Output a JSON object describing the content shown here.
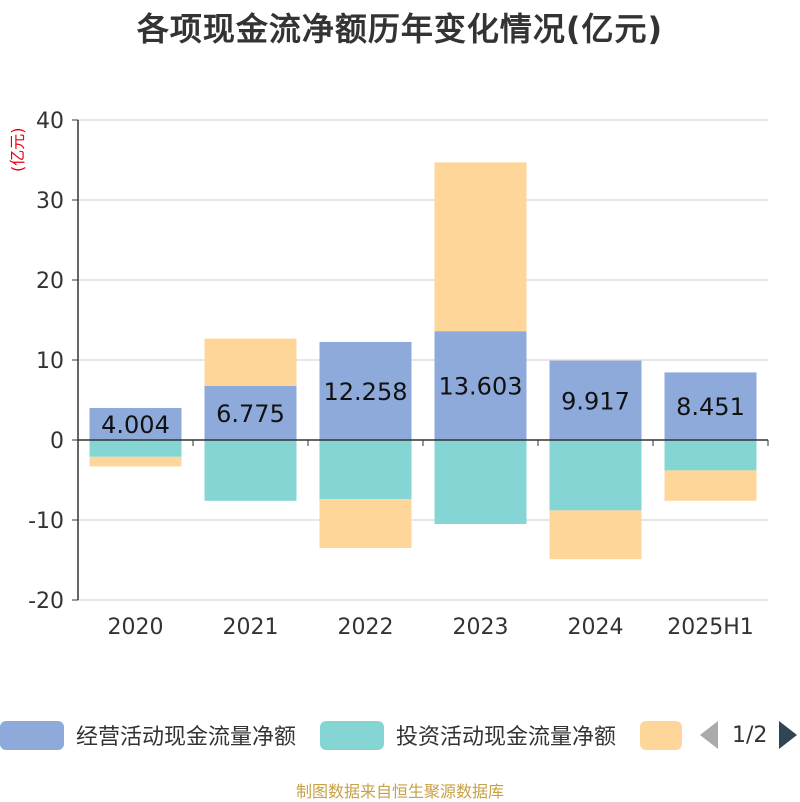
{
  "title": "各项现金流净额历年变化情况(亿元)",
  "unit_label": "(亿元)",
  "source": "制图数据来自恒生聚源数据库",
  "legend": {
    "items": [
      {
        "label": "经营活动现金流量净额",
        "color": "#8eaadb"
      },
      {
        "label": "投资活动现金流量净额",
        "color": "#85d5d5"
      },
      {
        "label": "",
        "color": "#ffd699"
      }
    ],
    "page": "1/2"
  },
  "chart_data": {
    "type": "bar",
    "stacked": true,
    "categories": [
      "2020",
      "2021",
      "2022",
      "2023",
      "2024",
      "2025H1"
    ],
    "series": [
      {
        "name": "经营活动现金流量净额",
        "color": "#8eaadb",
        "values": [
          4.004,
          6.775,
          12.258,
          13.603,
          9.917,
          8.451
        ],
        "labels_shown": true
      },
      {
        "name": "投资活动现金流量净额",
        "color": "#85d5d5",
        "values": [
          -2.1,
          -7.6,
          -7.4,
          -10.5,
          -8.8,
          -3.8
        ],
        "labels_shown": false
      },
      {
        "name": "",
        "color": "#ffd699",
        "values": [
          -1.2,
          5.9,
          -6.1,
          21.1,
          -6.1,
          -3.8
        ],
        "labels_shown": false
      }
    ],
    "ylim": [
      -20,
      40
    ],
    "yticks": [
      -20,
      -10,
      0,
      10,
      20,
      30,
      40
    ],
    "grid": true,
    "legend_position": "bottom"
  }
}
